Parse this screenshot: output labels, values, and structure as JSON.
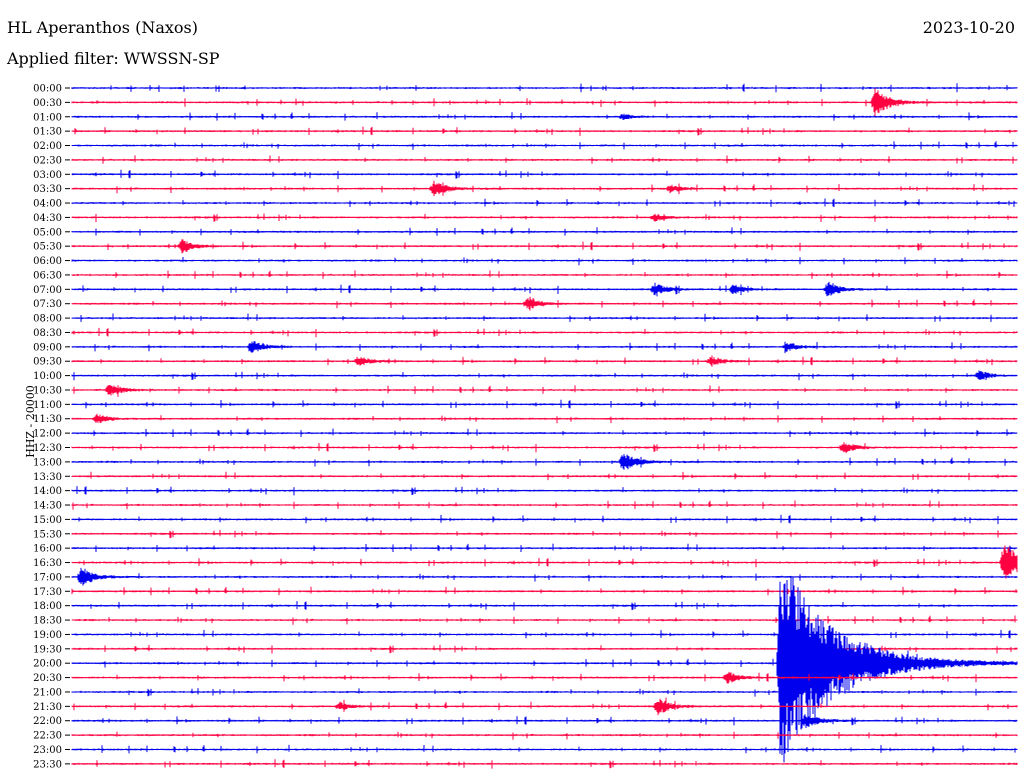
{
  "header": {
    "station": "HL Aperanthos (Naxos)",
    "date": "2023-10-20",
    "filter": "Applied filter: WWSSN-SP",
    "channel": "HHZ - 20000"
  },
  "colors": {
    "blue": "#0000ee",
    "red": "#ff0040"
  },
  "chart_data": {
    "type": "line",
    "title": "HL Aperanthos (Naxos)",
    "subtitle": "Applied filter: WWSSN-SP",
    "ylabel": "HHZ - 20000",
    "date": "2023-10-20",
    "tick_labels": [
      "00:00",
      "00:30",
      "01:00",
      "01:30",
      "02:00",
      "02:30",
      "03:00",
      "03:30",
      "04:00",
      "04:30",
      "05:00",
      "05:30",
      "06:00",
      "06:30",
      "07:00",
      "07:30",
      "08:00",
      "08:30",
      "09:00",
      "09:30",
      "10:00",
      "10:30",
      "11:00",
      "11:30",
      "12:00",
      "12:30",
      "13:00",
      "13:30",
      "14:00",
      "14:30",
      "15:00",
      "15:30",
      "16:00",
      "16:30",
      "17:00",
      "17:30",
      "18:00",
      "18:30",
      "19:00",
      "19:30",
      "20:00",
      "20:30",
      "21:00",
      "21:30",
      "22:00",
      "22:30",
      "23:00",
      "23:30"
    ],
    "row_duration_minutes": 30,
    "trace_colors": [
      "blue",
      "red"
    ],
    "events": [
      {
        "row": 1,
        "minute": 25.5,
        "amplitude": 14
      },
      {
        "row": 2,
        "minute": 17.5,
        "amplitude": 3
      },
      {
        "row": 7,
        "minute": 11.5,
        "amplitude": 8
      },
      {
        "row": 7,
        "minute": 19.0,
        "amplitude": 4
      },
      {
        "row": 9,
        "minute": 18.5,
        "amplitude": 4
      },
      {
        "row": 11,
        "minute": 3.5,
        "amplitude": 7
      },
      {
        "row": 14,
        "minute": 18.5,
        "amplitude": 6
      },
      {
        "row": 14,
        "minute": 21.0,
        "amplitude": 5
      },
      {
        "row": 14,
        "minute": 24.0,
        "amplitude": 8
      },
      {
        "row": 15,
        "minute": 14.5,
        "amplitude": 7
      },
      {
        "row": 18,
        "minute": 5.7,
        "amplitude": 7
      },
      {
        "row": 18,
        "minute": 22.7,
        "amplitude": 5
      },
      {
        "row": 19,
        "minute": 9.1,
        "amplitude": 5
      },
      {
        "row": 19,
        "minute": 20.3,
        "amplitude": 5
      },
      {
        "row": 20,
        "minute": 28.8,
        "amplitude": 5
      },
      {
        "row": 21,
        "minute": 1.2,
        "amplitude": 7
      },
      {
        "row": 23,
        "minute": 0.8,
        "amplitude": 5
      },
      {
        "row": 25,
        "minute": 24.5,
        "amplitude": 6
      },
      {
        "row": 26,
        "minute": 17.5,
        "amplitude": 10
      },
      {
        "row": 33,
        "minute": 29.6,
        "amplitude": 22
      },
      {
        "row": 34,
        "minute": 0.3,
        "amplitude": 10
      },
      {
        "row": 40,
        "minute": 22.5,
        "amplitude": 110
      },
      {
        "row": 41,
        "minute": 20.8,
        "amplitude": 6
      },
      {
        "row": 43,
        "minute": 8.5,
        "amplitude": 4
      },
      {
        "row": 43,
        "minute": 18.6,
        "amplitude": 9
      },
      {
        "row": 44,
        "minute": 23.3,
        "amplitude": 8
      }
    ]
  }
}
